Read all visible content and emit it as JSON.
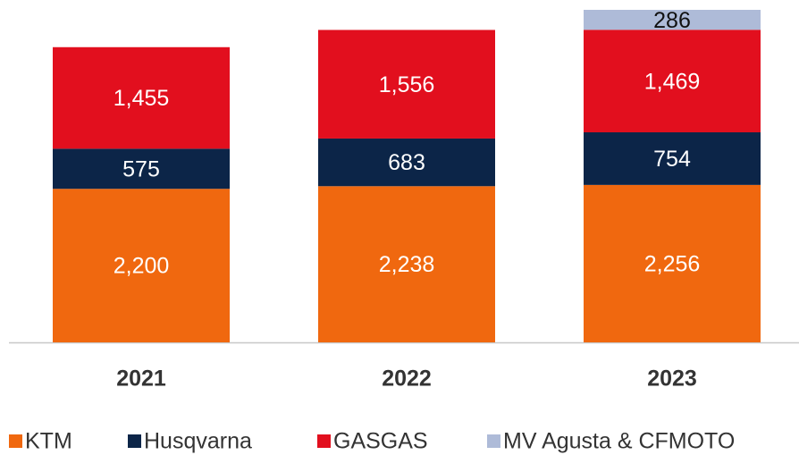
{
  "chart_data": {
    "type": "stacked_bar",
    "categories": [
      "2021",
      "2022",
      "2023"
    ],
    "series": [
      {
        "name": "KTM",
        "color": "#f0680f",
        "values": [
          2200,
          2238,
          2256
        ],
        "value_labels": [
          "2,200",
          "2,238",
          "2,256"
        ]
      },
      {
        "name": "Husqvarna",
        "color": "#0c2548",
        "values": [
          575,
          683,
          754
        ]
      },
      {
        "name": "GASGAS",
        "color": "#e20f1e",
        "values": [
          1455,
          1556,
          1469
        ],
        "value_labels": [
          "1,455",
          "1,556",
          "1,469"
        ]
      },
      {
        "name": "MV Agusta & CFMOTO",
        "color": "#aebbd8",
        "values": [
          null,
          null,
          286
        ]
      }
    ]
  }
}
